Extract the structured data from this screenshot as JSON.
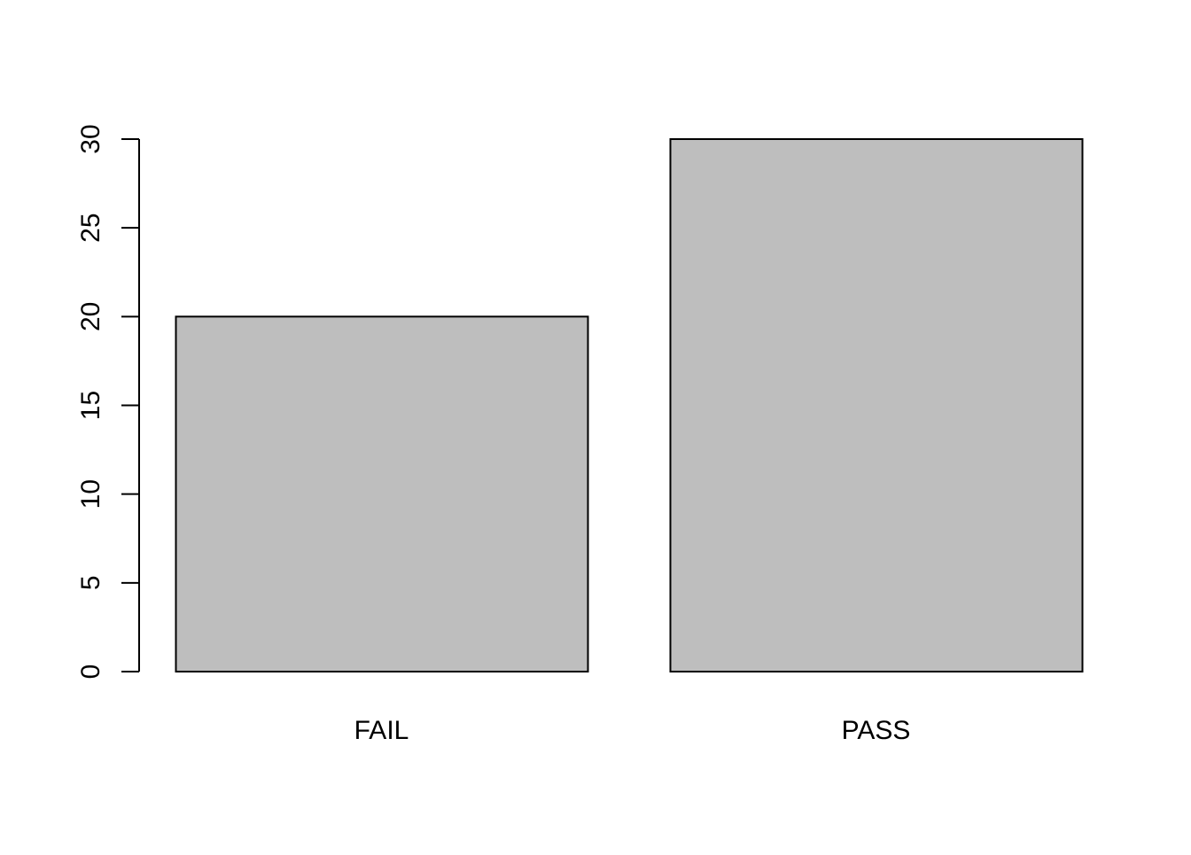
{
  "chart_data": {
    "type": "bar",
    "title": "",
    "xlabel": "",
    "ylabel": "",
    "categories": [
      "FAIL",
      "PASS"
    ],
    "values": [
      20,
      30
    ],
    "ylim": [
      0,
      30
    ],
    "yticks": [
      0,
      5,
      10,
      15,
      20,
      25,
      30
    ],
    "ytick_labels": [
      "0",
      "5",
      "10",
      "15",
      "20",
      "25",
      "30"
    ],
    "grid": false,
    "legend": "none"
  },
  "colors": {
    "bar_fill": "#bebebe",
    "bar_stroke": "#000000",
    "axis": "#000000",
    "background": "#ffffff"
  }
}
